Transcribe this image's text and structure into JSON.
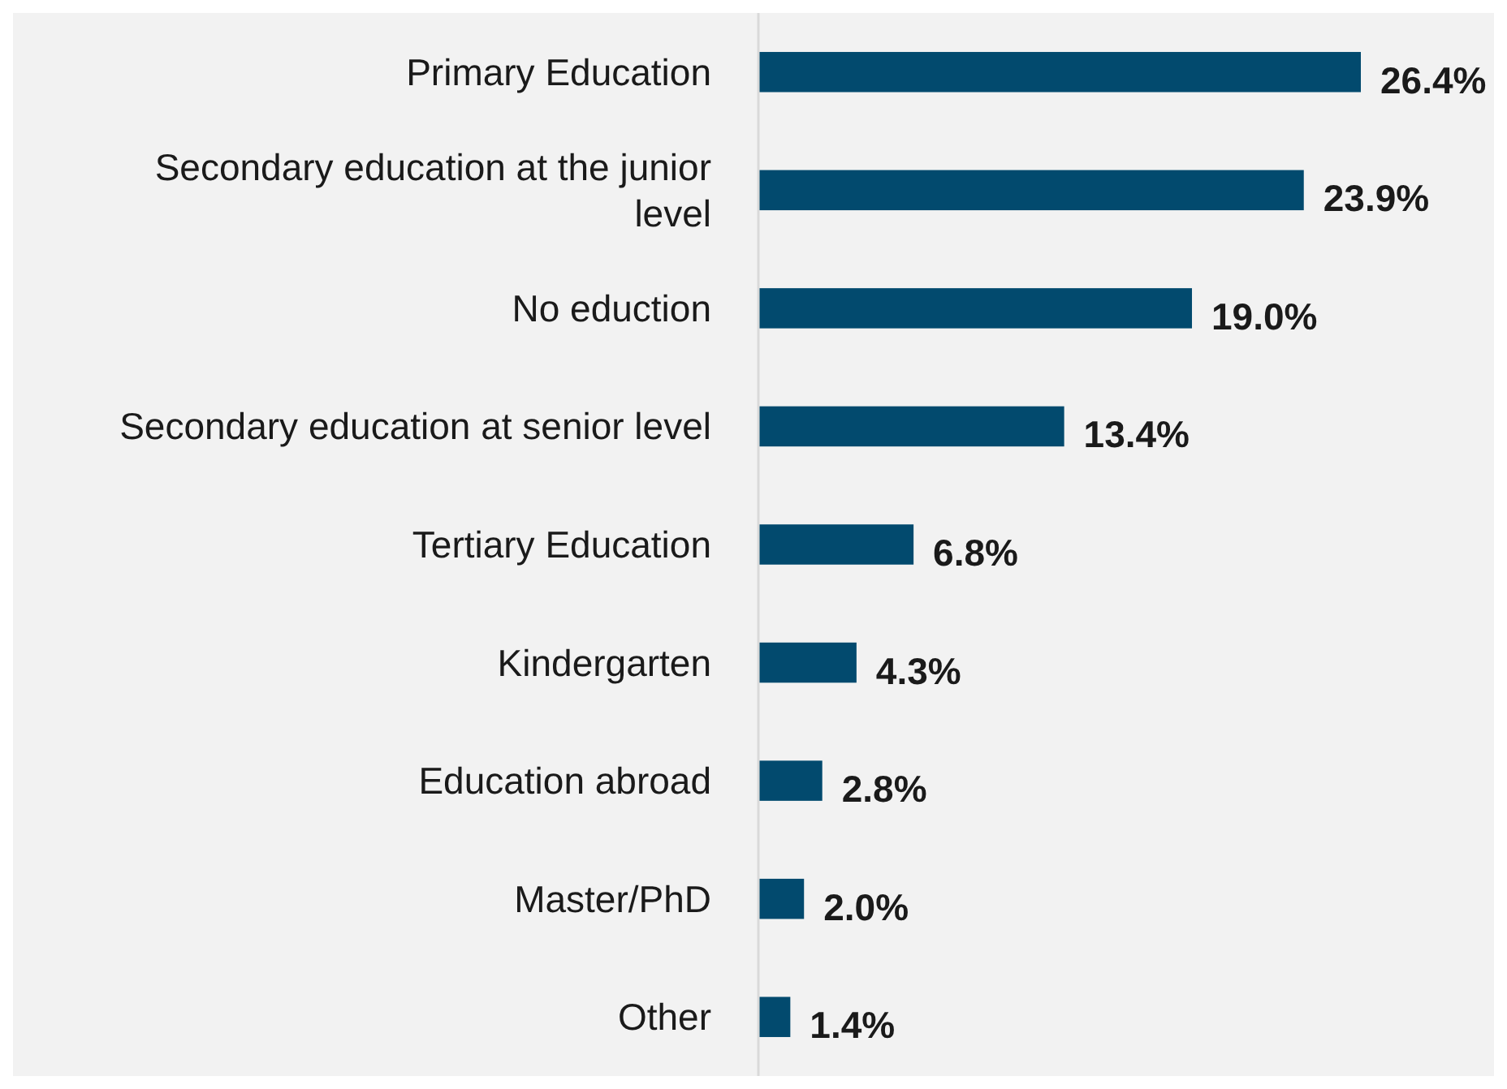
{
  "chart_data": {
    "type": "bar",
    "orientation": "horizontal",
    "categories": [
      "Primary Education",
      "Secondary education at the junior level",
      "No eduction",
      "Secondary education at senior level",
      "Tertiary Education",
      "Kindergarten",
      "Education abroad",
      "Master/PhD",
      "Other"
    ],
    "values": [
      26.4,
      23.9,
      19.0,
      13.4,
      6.8,
      4.3,
      2.8,
      2.0,
      1.4
    ],
    "value_labels": [
      "26.4%",
      "23.9%",
      "19.0%",
      "13.4%",
      "6.8%",
      "4.3%",
      "2.8%",
      "2.0%",
      "1.4%"
    ],
    "color": "#024a6e",
    "tick_labels": "y"
  }
}
